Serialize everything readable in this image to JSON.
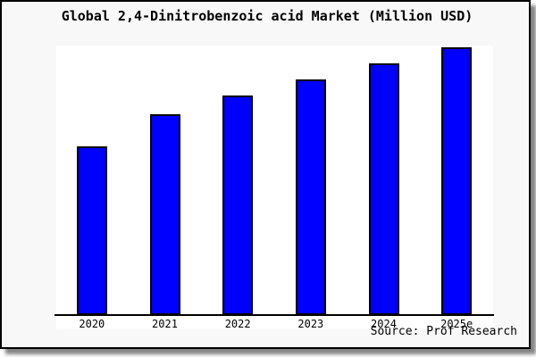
{
  "title": "Global 2,4-Dinitrobenzoic acid Market (Million USD)",
  "source": "Source: Prof Research",
  "colors": {
    "bar_fill": "#0000ff",
    "bar_border": "#000000",
    "frame_bg": "#f8f8f8",
    "plot_bg": "#ffffff",
    "axis": "#000000",
    "text": "#000000"
  },
  "chart_data": {
    "type": "bar",
    "title": "Global 2,4-Dinitrobenzoic acid Market (Million USD)",
    "categories": [
      "2020",
      "2021",
      "2022",
      "2023",
      "2024",
      "2025e"
    ],
    "values": [
      63,
      75,
      82,
      88,
      94,
      100
    ],
    "value_note": "No y-axis or data labels shown; values are relative bar heights normalized so the tallest bar (2025e) = 100",
    "xlabel": "",
    "ylabel": "",
    "ylim": [
      0,
      100
    ],
    "grid": false,
    "legend": "none",
    "source": "Source: Prof Research"
  }
}
